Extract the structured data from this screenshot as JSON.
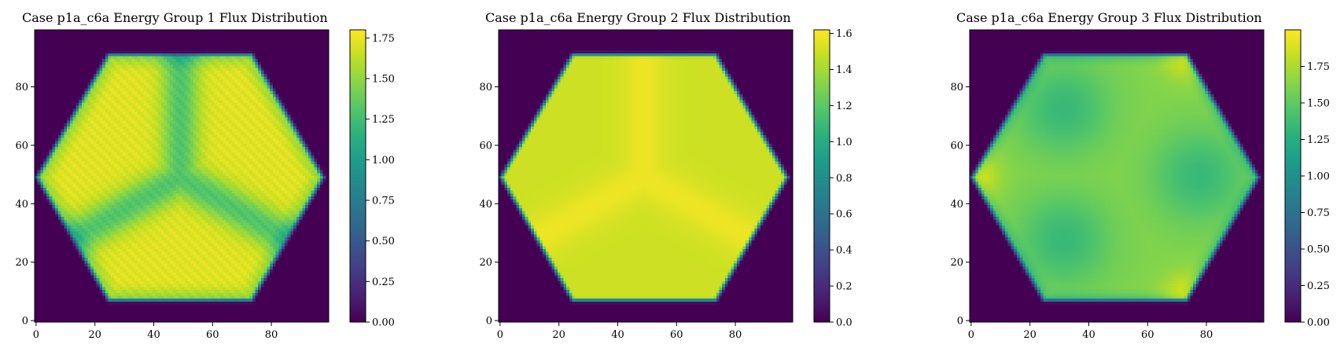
{
  "chart_data": [
    {
      "type": "heatmap",
      "title": "Case p1a_c6a Energy Group 1 Flux Distribution",
      "colormap": "viridis",
      "pattern": "three-rhombi-high-center-low",
      "xlim": [
        0,
        99
      ],
      "ylim": [
        0,
        99
      ],
      "xticks": [
        "0",
        "20",
        "40",
        "60",
        "80"
      ],
      "yticks": [
        "0",
        "20",
        "40",
        "60",
        "80"
      ],
      "colorbar": {
        "min": 0.0,
        "max": 1.8,
        "ticks": [
          "0.00",
          "0.25",
          "0.50",
          "0.75",
          "1.00",
          "1.25",
          "1.50",
          "1.75"
        ]
      },
      "xlabel": "",
      "ylabel": ""
    },
    {
      "type": "heatmap",
      "title": "Case p1a_c6a Energy Group 2 Flux Distribution",
      "colormap": "viridis",
      "pattern": "nearly-uniform-high",
      "xlim": [
        0,
        99
      ],
      "ylim": [
        0,
        99
      ],
      "xticks": [
        "0",
        "20",
        "40",
        "60",
        "80"
      ],
      "yticks": [
        "0",
        "20",
        "40",
        "60",
        "80"
      ],
      "colorbar": {
        "min": 0.0,
        "max": 1.62,
        "ticks": [
          "0.0",
          "0.2",
          "0.4",
          "0.6",
          "0.8",
          "1.0",
          "1.2",
          "1.4",
          "1.6"
        ]
      },
      "xlabel": "",
      "ylabel": ""
    },
    {
      "type": "heatmap",
      "title": "Case p1a_c6a Energy Group 3 Flux Distribution",
      "colormap": "viridis",
      "pattern": "three-rhombi-low-center-high-corners",
      "xlim": [
        0,
        99
      ],
      "ylim": [
        0,
        99
      ],
      "xticks": [
        "0",
        "20",
        "40",
        "60",
        "80"
      ],
      "yticks": [
        "0",
        "20",
        "40",
        "60",
        "80"
      ],
      "colorbar": {
        "min": 0.0,
        "max": 2.0,
        "ticks": [
          "0.00",
          "0.25",
          "0.50",
          "0.75",
          "1.00",
          "1.25",
          "1.50",
          "1.75"
        ]
      },
      "xlabel": "",
      "ylabel": ""
    }
  ]
}
